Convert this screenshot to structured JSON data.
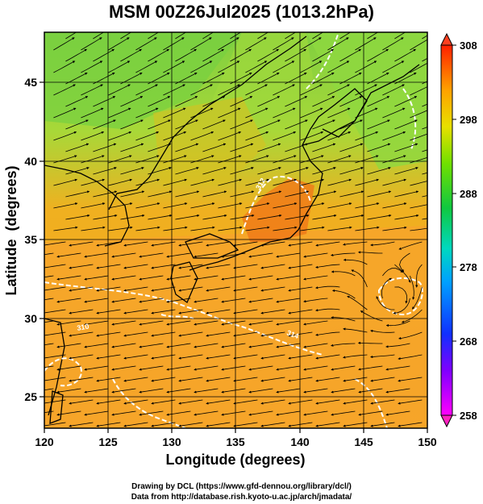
{
  "title": "MSM 00Z26Jul2025 (1013.2hPa)",
  "x_axis": {
    "label": "Longitude (degrees)",
    "ticks": [
      "120",
      "125",
      "130",
      "135",
      "140",
      "145",
      "150"
    ],
    "range": [
      120,
      150
    ]
  },
  "y_axis": {
    "label": "Latitude  (degrees)",
    "ticks": [
      "25",
      "30",
      "35",
      "40",
      "45"
    ],
    "range": [
      22.4,
      47.6
    ]
  },
  "colorbar": {
    "ticks": [
      "258",
      "268",
      "278",
      "288",
      "298",
      "308"
    ],
    "range": [
      258,
      308
    ],
    "colors": [
      "#ff00ff",
      "#3000ff",
      "#00c8ff",
      "#00d080",
      "#60e000",
      "#e0e000",
      "#ffa000",
      "#ff2000"
    ]
  },
  "contour_labels": [
    "312",
    "310",
    "314"
  ],
  "footer": {
    "line1": "Drawing by DCL (https://www.gfd-dennou.org/library/dcl/)",
    "line2": "Data from http://database.rish.kyoto-u.ac.jp/arch/jmadata/"
  },
  "colors": {
    "land_green": "#7fd34a",
    "warm_orange": "#f5a020",
    "hot_orange": "#f07010",
    "grid": "#000000",
    "contour": "#ffffff"
  }
}
